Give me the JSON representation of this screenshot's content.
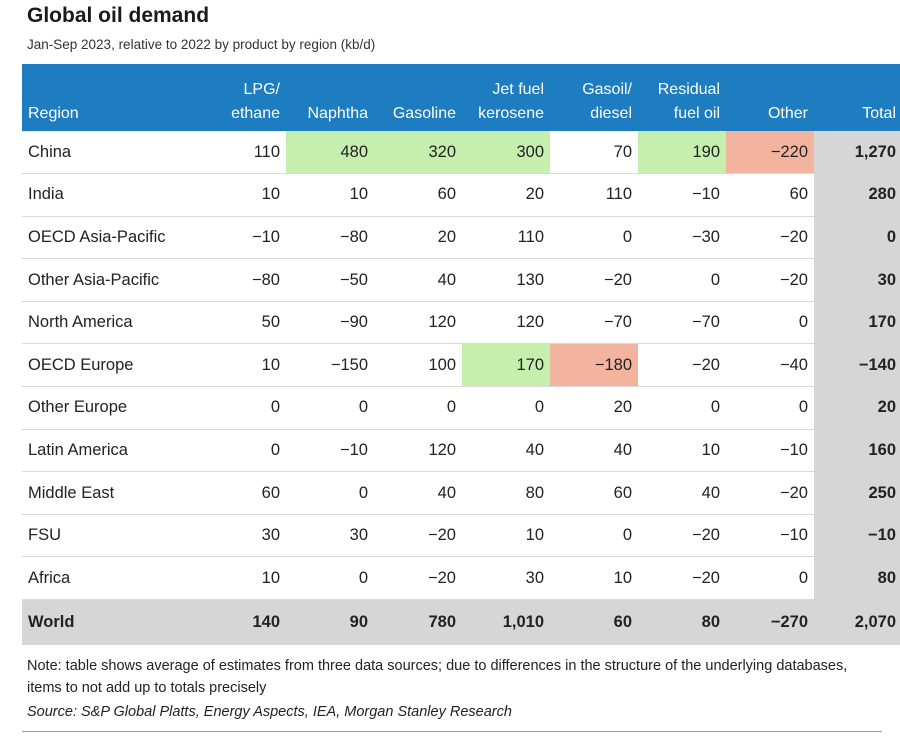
{
  "title": "Global oil demand",
  "subtitle": "Jan-Sep 2023, relative to 2022 by product by region (kb/d)",
  "columns": {
    "region": "Region",
    "lpg_l1": "LPG/",
    "lpg_l2": "ethane",
    "naphtha": "Naphtha",
    "gasoline": "Gasoline",
    "jet_l1": "Jet fuel",
    "jet_l2": "kerosene",
    "diesel_l1": "Gasoil/",
    "diesel_l2": "diesel",
    "resid_l1": "Residual",
    "resid_l2": "fuel oil",
    "other": "Other",
    "total": "Total"
  },
  "rows": [
    {
      "region": "China",
      "lpg": "110",
      "naphtha": "480",
      "gasoline": "320",
      "jet": "300",
      "diesel": "70",
      "resid": "190",
      "other": "−220",
      "total": "1,270"
    },
    {
      "region": "India",
      "lpg": "10",
      "naphtha": "10",
      "gasoline": "60",
      "jet": "20",
      "diesel": "110",
      "resid": "−10",
      "other": "60",
      "total": "280"
    },
    {
      "region": "OECD Asia-Pacific",
      "lpg": "−10",
      "naphtha": "−80",
      "gasoline": "20",
      "jet": "110",
      "diesel": "0",
      "resid": "−30",
      "other": "−20",
      "total": "0"
    },
    {
      "region": "Other Asia-Pacific",
      "lpg": "−80",
      "naphtha": "−50",
      "gasoline": "40",
      "jet": "130",
      "diesel": "−20",
      "resid": "0",
      "other": "−20",
      "total": "30"
    },
    {
      "region": "North America",
      "lpg": "50",
      "naphtha": "−90",
      "gasoline": "120",
      "jet": "120",
      "diesel": "−70",
      "resid": "−70",
      "other": "0",
      "total": "170"
    },
    {
      "region": "OECD Europe",
      "lpg": "10",
      "naphtha": "−150",
      "gasoline": "100",
      "jet": "170",
      "diesel": "−180",
      "resid": "−20",
      "other": "−40",
      "total": "−140"
    },
    {
      "region": "Other Europe",
      "lpg": "0",
      "naphtha": "0",
      "gasoline": "0",
      "jet": "0",
      "diesel": "20",
      "resid": "0",
      "other": "0",
      "total": "20"
    },
    {
      "region": "Latin America",
      "lpg": "0",
      "naphtha": "−10",
      "gasoline": "120",
      "jet": "40",
      "diesel": "40",
      "resid": "10",
      "other": "−10",
      "total": "160"
    },
    {
      "region": "Middle East",
      "lpg": "60",
      "naphtha": "0",
      "gasoline": "40",
      "jet": "80",
      "diesel": "60",
      "resid": "40",
      "other": "−20",
      "total": "250"
    },
    {
      "region": "FSU",
      "lpg": "30",
      "naphtha": "30",
      "gasoline": "−20",
      "jet": "10",
      "diesel": "0",
      "resid": "−20",
      "other": "−10",
      "total": "−10"
    },
    {
      "region": "Africa",
      "lpg": "10",
      "naphtha": "0",
      "gasoline": "−20",
      "jet": "30",
      "diesel": "10",
      "resid": "−20",
      "other": "0",
      "total": "80"
    }
  ],
  "world": {
    "region": "World",
    "lpg": "140",
    "naphtha": "90",
    "gasoline": "780",
    "jet": "1,010",
    "diesel": "60",
    "resid": "80",
    "other": "−270",
    "total": "2,070"
  },
  "colors": {
    "header": "#1e7cc0",
    "highlight_green": "#c6efae",
    "highlight_red": "#f2b49e",
    "total_gray": "#d6d6d6"
  },
  "note": "Note: table shows average of estimates from three data sources; due to differences in the structure of the underlying databases, items to not add up to totals precisely",
  "source": "Source: S&P Global Platts, Energy Aspects, IEA, Morgan Stanley Research"
}
